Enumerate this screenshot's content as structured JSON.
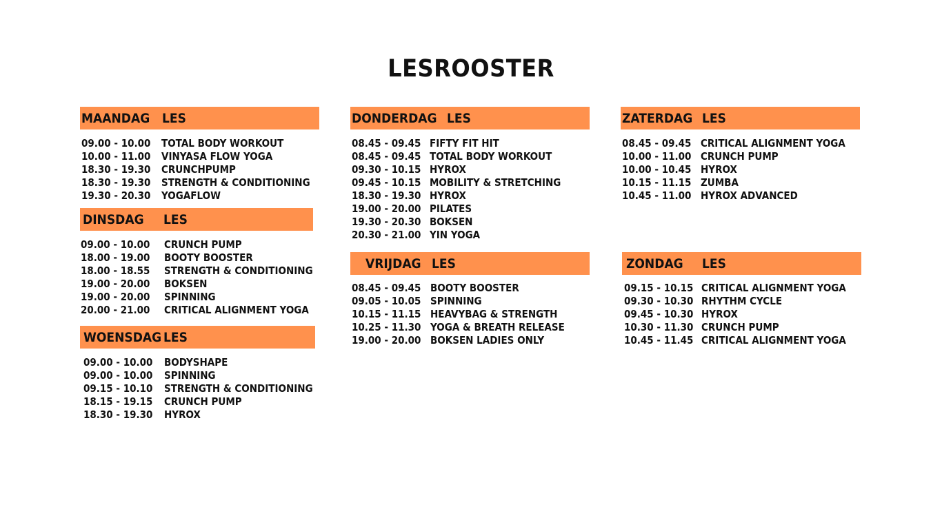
{
  "title": "LESROOSTER",
  "accent_color": "#FF914D",
  "days": [
    {
      "day": "MAANDAG",
      "les": "LES",
      "rows": [
        [
          "09.00 - 10.00",
          "TOTAL BODY WORKOUT"
        ],
        [
          "10.00 - 11.00",
          "VINYASA FLOW YOGA"
        ],
        [
          "18.30 - 19.30",
          "CRUNCHPUMP"
        ],
        [
          "18.30 - 19.30",
          "STRENGTH & CONDITIONING"
        ],
        [
          "19.30 - 20.30",
          "YOGAFLOW"
        ]
      ]
    },
    {
      "day": "DINSDAG",
      "les": "LES",
      "rows": [
        [
          "09.00 - 10.00",
          "CRUNCH PUMP"
        ],
        [
          "18.00 - 19.00",
          "BOOTY BOOSTER"
        ],
        [
          "18.00 - 18.55",
          "STRENGTH & CONDITIONING"
        ],
        [
          "19.00 - 20.00",
          "BOKSEN"
        ],
        [
          "19.00 - 20.00",
          "SPINNING"
        ],
        [
          "20.00 - 21.00",
          "CRITICAL ALIGNMENT YOGA"
        ]
      ]
    },
    {
      "day": "WOENSDAG",
      "les": "LES",
      "rows": [
        [
          "09.00 - 10.00",
          "BODYSHAPE"
        ],
        [
          "09.00 - 10.00",
          "SPINNING"
        ],
        [
          "09.15 -  10.10",
          "STRENGTH & CONDITIONING"
        ],
        [
          "18.15 -  19.15",
          "CRUNCH PUMP"
        ],
        [
          "18.30 -  19.30",
          "HYROX"
        ]
      ]
    },
    {
      "day": "DONDERDAG",
      "les": "LES",
      "rows": [
        [
          "08.45 - 09.45",
          "FIFTY FIT HIT"
        ],
        [
          "08.45 - 09.45",
          "TOTAL BODY WORKOUT"
        ],
        [
          "09.30 - 10.15",
          "HYROX"
        ],
        [
          "09.45 - 10.15",
          "MOBILITY & STRETCHING"
        ],
        [
          "18.30 - 19.30",
          "HYROX"
        ],
        [
          "19.00 - 20.00",
          "PILATES"
        ],
        [
          "19.30 - 20.30",
          "BOKSEN"
        ],
        [
          "20.30 - 21.00",
          "YIN YOGA"
        ]
      ]
    },
    {
      "day": "VRIJDAG",
      "les": "LES",
      "rows": [
        [
          "08.45 - 09.45",
          "BOOTY BOOSTER"
        ],
        [
          "09.05 - 10.05",
          "SPINNING"
        ],
        [
          "10.15 - 11.15",
          "HEAVYBAG & STRENGTH"
        ],
        [
          "10.25 - 11.30",
          "YOGA & BREATH RELEASE"
        ],
        [
          "19.00 - 20.00",
          "BOKSEN LADIES ONLY"
        ]
      ]
    },
    {
      "day": "ZATERDAG",
      "les": "LES",
      "rows": [
        [
          "08.45 - 09.45",
          "CRITICAL ALIGNMENT YOGA"
        ],
        [
          "10.00 - 11.00",
          "CRUNCH PUMP"
        ],
        [
          "10.00 - 10.45",
          "HYROX"
        ],
        [
          "10.15 - 11.15",
          "ZUMBA"
        ],
        [
          "10.45 - 11.00",
          "HYROX ADVANCED"
        ]
      ]
    },
    {
      "day": "ZONDAG",
      "les": "LES",
      "rows": [
        [
          "09.15 - 10.15",
          "CRITICAL ALIGNMENT YOGA"
        ],
        [
          "09.30 - 10.30",
          "RHYTHM CYCLE"
        ],
        [
          "09.45 - 10.30",
          "HYROX"
        ],
        [
          "10.30 - 11.30",
          "CRUNCH PUMP"
        ],
        [
          "10.45 - 11.45",
          "CRITICAL ALIGNMENT YOGA"
        ]
      ]
    }
  ]
}
